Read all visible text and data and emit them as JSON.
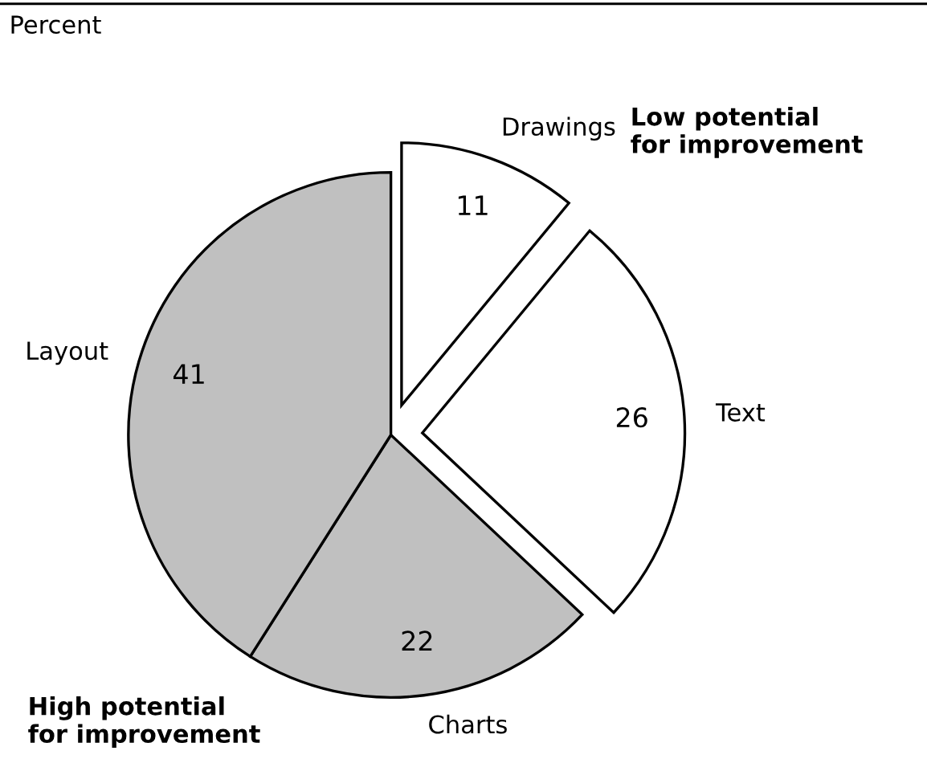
{
  "chart_data": {
    "type": "pie",
    "subtitle": "Percent",
    "categories": [
      "Drawings",
      "Text",
      "Charts",
      "Layout"
    ],
    "values": [
      11,
      26,
      22,
      41
    ],
    "colors": [
      "#ffffff",
      "#ffffff",
      "#c0c0c0",
      "#c0c0c0"
    ],
    "data_labels": true,
    "legend": false,
    "annotations": [
      "Low potential\nfor improvement",
      "High potential\nfor improvement"
    ]
  }
}
